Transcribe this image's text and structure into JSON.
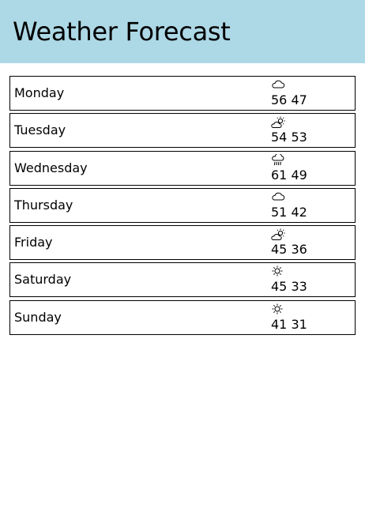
{
  "header": {
    "title": "Weather Forecast"
  },
  "forecast": [
    {
      "day": "Monday",
      "icon": "cloud-icon",
      "high": "56",
      "low": "47"
    },
    {
      "day": "Tuesday",
      "icon": "partly-sunny-icon",
      "high": "54",
      "low": "53"
    },
    {
      "day": "Wednesday",
      "icon": "rain-icon",
      "high": "61",
      "low": "49"
    },
    {
      "day": "Thursday",
      "icon": "cloud-icon",
      "high": "51",
      "low": "42"
    },
    {
      "day": "Friday",
      "icon": "partly-sunny-icon",
      "high": "45",
      "low": "36"
    },
    {
      "day": "Saturday",
      "icon": "sun-icon",
      "high": "45",
      "low": "33"
    },
    {
      "day": "Sunday",
      "icon": "sun-icon",
      "high": "41",
      "low": "31"
    }
  ],
  "colors": {
    "header_background": "#add8e6",
    "border": "#000000"
  }
}
